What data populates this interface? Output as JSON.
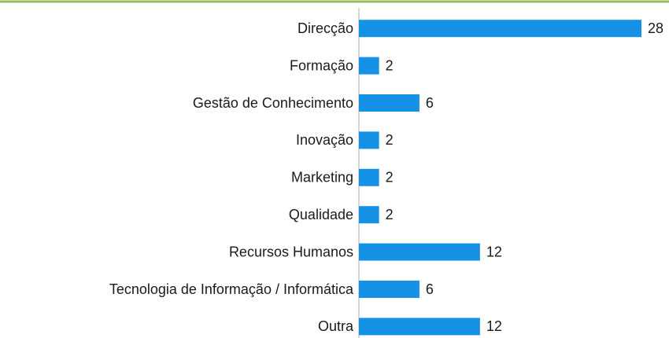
{
  "chart_data": {
    "type": "bar",
    "orientation": "horizontal",
    "categories": [
      "Direcção",
      "Formação",
      "Gestão de Conhecimento",
      "Inovação",
      "Marketing",
      "Qualidade",
      "Recursos Humanos",
      "Tecnologia de Informação / Informática",
      "Outra"
    ],
    "values": [
      28,
      2,
      6,
      2,
      2,
      2,
      12,
      6,
      12
    ],
    "color": "#1592e6"
  }
}
